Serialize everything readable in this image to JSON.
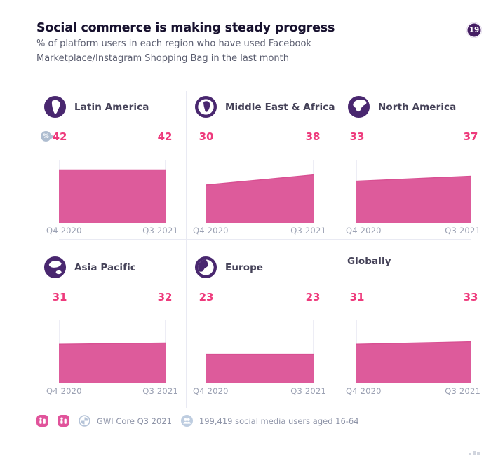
{
  "page": {
    "title": "Social commerce is making steady progress",
    "subtitle": "% of platform users in each region who have used Facebook Marketplace/Instagram Shopping Bag in the last month",
    "page_number": "19",
    "unit_badge": "%"
  },
  "chart_data": {
    "type": "area",
    "title": "Social commerce is making steady progress",
    "subtitle": "% of platform users in each region who have used Facebook Marketplace/Instagram Shopping Bag in the last month",
    "categories": [
      "Q4 2020",
      "Q3 2021"
    ],
    "unit": "%",
    "ylim": [
      0,
      50
    ],
    "grid": false,
    "legend": "none",
    "series": [
      {
        "name": "Latin America",
        "values": [
          42,
          42
        ]
      },
      {
        "name": "Middle East & Africa",
        "values": [
          30,
          38
        ]
      },
      {
        "name": "North America",
        "values": [
          33,
          37
        ]
      },
      {
        "name": "Asia Pacific",
        "values": [
          31,
          32
        ]
      },
      {
        "name": "Europe",
        "values": [
          23,
          23
        ]
      },
      {
        "name": "Globally",
        "values": [
          31,
          33
        ]
      }
    ],
    "area_color": "#dd5b9b",
    "line_color": "#d84f92",
    "value_label_color": "#ee3a7c"
  },
  "footer": {
    "source": "GWI Core Q3 2021",
    "audience": "199,419 social media users aged 16-64"
  },
  "colors": {
    "accent_pink": "#dd5b9b",
    "accent_pink_bright": "#ee3a7c",
    "brand_purple": "#49276f",
    "badge_purple": "#451e63",
    "muted_blue": "#aebdd0",
    "text_dark": "#17112e",
    "text_gray": "#5a5d6f"
  }
}
